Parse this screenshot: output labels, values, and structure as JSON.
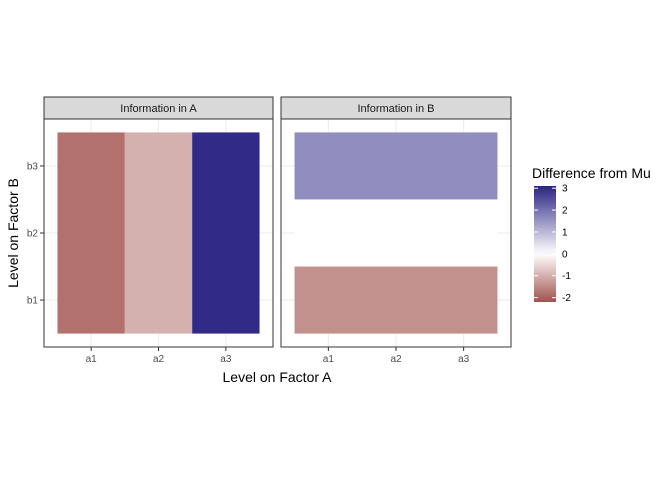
{
  "chart_data": {
    "type": "heatmap",
    "xlabel": "Level on Factor A",
    "ylabel": "Level on Factor B",
    "x_categories": [
      "a1",
      "a2",
      "a3"
    ],
    "y_categories": [
      "b1",
      "b2",
      "b3"
    ],
    "facets": [
      {
        "label": "Information in A",
        "cells": [
          {
            "x": "a1",
            "y_span": [
              "b1",
              "b3"
            ],
            "value": -1.8
          },
          {
            "x": "a2",
            "y_span": [
              "b1",
              "b3"
            ],
            "value": -1.0
          },
          {
            "x": "a3",
            "y_span": [
              "b1",
              "b3"
            ],
            "value": 3.0
          }
        ]
      },
      {
        "label": "Information in B",
        "cells": [
          {
            "x_span": [
              "a1",
              "a3"
            ],
            "y": "b3",
            "value": 1.6
          },
          {
            "x_span": [
              "a1",
              "a3"
            ],
            "y": "b2",
            "value": 0.0
          },
          {
            "x_span": [
              "a1",
              "a3"
            ],
            "y": "b1",
            "value": -1.4
          }
        ]
      }
    ],
    "legend": {
      "title": "Difference from Mu",
      "placement": "right",
      "ticks": [
        3,
        2,
        1,
        0,
        -1,
        -2
      ],
      "range": [
        -2.2,
        3.1
      ],
      "low_color": "#a0524c",
      "mid_color": "#ffffff",
      "high_color": "#2b2383"
    },
    "grid": true,
    "panel_border_color": "#333333",
    "strip_fill": "#d9d9d9",
    "grid_color": "#ebebeb"
  }
}
